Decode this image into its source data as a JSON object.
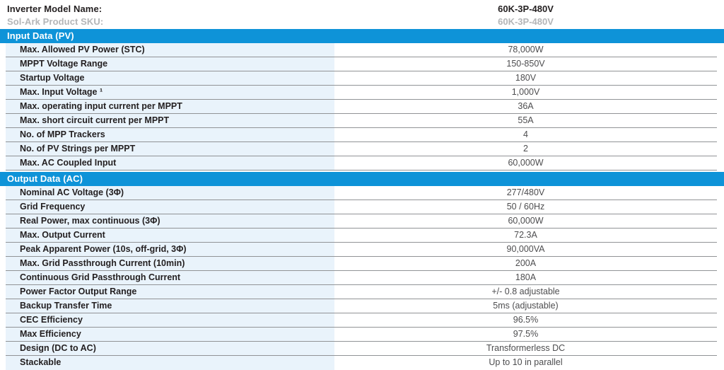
{
  "header": {
    "model_label": "Inverter Model Name:",
    "model_value": "60K-3P-480V",
    "sku_label": "Sol-Ark Product SKU:",
    "sku_value": "60K-3P-480V"
  },
  "colors": {
    "section_band_blue": "#0e93d8",
    "label_column_tint": "#e9f3fb",
    "row_divider_gray": "#919396",
    "label_text": "#231f20",
    "value_text": "#4d4d4f",
    "sku_text_gray": "#b3b5b7"
  },
  "sections": [
    {
      "title": "Input Data (PV)",
      "rows": [
        {
          "label": "Max. Allowed PV Power (STC)",
          "value": "78,000W"
        },
        {
          "label": "MPPT Voltage Range",
          "value": "150-850V"
        },
        {
          "label": "Startup Voltage",
          "value": "180V"
        },
        {
          "label": "Max. Input Voltage ¹",
          "value": "1,000V"
        },
        {
          "label": "Max. operating input current per MPPT",
          "value": "36A"
        },
        {
          "label": "Max. short circuit current per MPPT",
          "value": "55A"
        },
        {
          "label": "No. of MPP Trackers",
          "value": "4"
        },
        {
          "label": "No. of PV Strings per MPPT",
          "value": "2"
        },
        {
          "label": "Max. AC Coupled Input",
          "value": "60,000W"
        }
      ]
    },
    {
      "title": "Output Data (AC)",
      "rows": [
        {
          "label": "Nominal AC Voltage (3Φ)",
          "value": "277/480V"
        },
        {
          "label": "Grid Frequency",
          "value": "50 / 60Hz"
        },
        {
          "label": "Real Power, max continuous (3Φ)",
          "value": "60,000W"
        },
        {
          "label": "Max. Output Current",
          "value": "72.3A"
        },
        {
          "label": "Peak Apparent Power (10s, off-grid, 3Φ)",
          "value": "90,000VA"
        },
        {
          "label": "Max. Grid Passthrough Current (10min)",
          "value": "200A"
        },
        {
          "label": "Continuous Grid Passthrough Current",
          "value": "180A"
        },
        {
          "label": "Power Factor Output Range",
          "value": "+/- 0.8 adjustable"
        },
        {
          "label": "Backup Transfer Time",
          "value": "5ms (adjustable)"
        },
        {
          "label": "CEC Efficiency",
          "value": "96.5%"
        },
        {
          "label": "Max Efficiency",
          "value": "97.5%"
        },
        {
          "label": "Design (DC to AC)",
          "value": "Transformerless DC"
        },
        {
          "label": "Stackable",
          "value": "Up to 10 in parallel"
        }
      ]
    }
  ]
}
